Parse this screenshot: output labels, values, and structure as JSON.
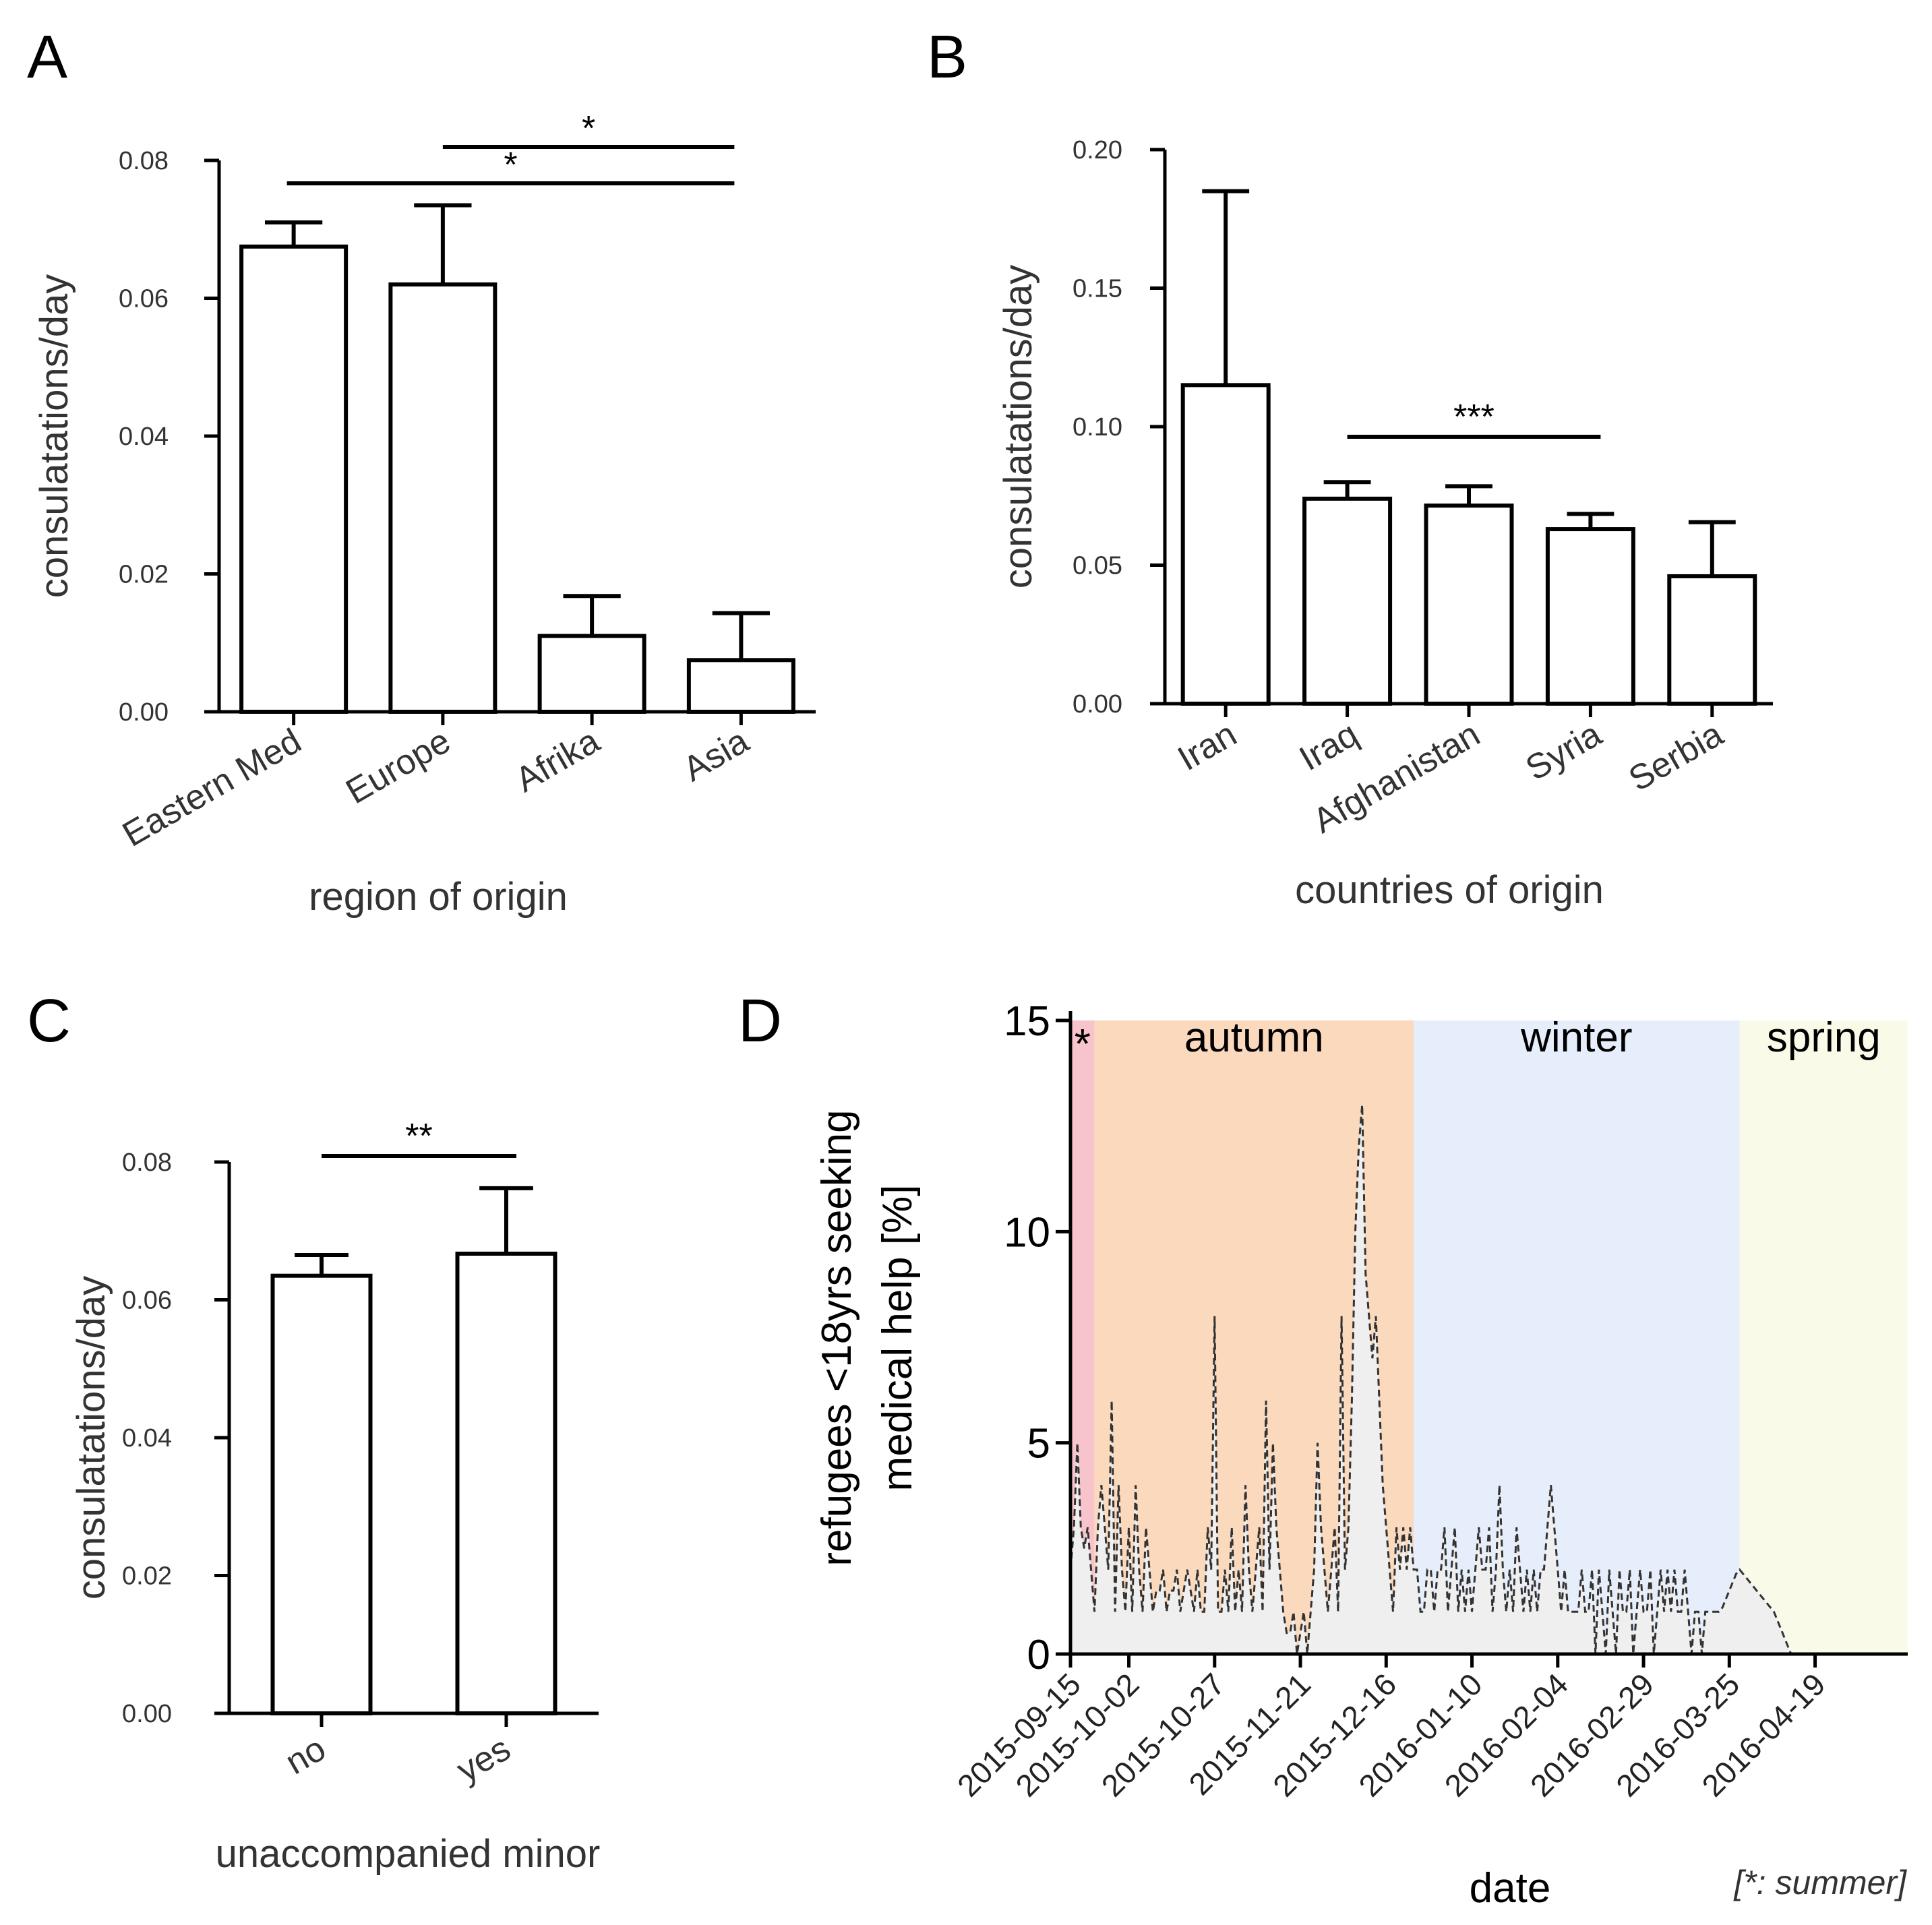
{
  "panels": {
    "A": {
      "label": "A"
    },
    "B": {
      "label": "B"
    },
    "C": {
      "label": "C"
    },
    "D": {
      "label": "D"
    }
  },
  "chart_data": [
    {
      "id": "A",
      "type": "bar",
      "categories": [
        "Eastern Med",
        "Europe",
        "Afrika",
        "Asia"
      ],
      "values": [
        0.0675,
        0.062,
        0.011,
        0.0075
      ],
      "errors": [
        0.0035,
        0.0115,
        0.0058,
        0.0068
      ],
      "ylabel": "consulatations/day",
      "xlabel": "region of origin",
      "ylim": [
        0,
        0.08
      ],
      "yticks": [
        "0.00",
        "0.02",
        "0.04",
        "0.06",
        "0.08"
      ],
      "significance": [
        {
          "from": 1,
          "to": 3,
          "label": "*"
        },
        {
          "from": 0,
          "to": 3,
          "label": "*"
        }
      ]
    },
    {
      "id": "B",
      "type": "bar",
      "categories": [
        "Iran",
        "Iraq",
        "Afghanistan",
        "Syria",
        "Serbia"
      ],
      "values": [
        0.115,
        0.074,
        0.0715,
        0.063,
        0.046
      ],
      "errors": [
        0.07,
        0.006,
        0.007,
        0.0055,
        0.0195
      ],
      "ylabel": "consulatations/day",
      "xlabel": "countries of origin",
      "ylim": [
        0,
        0.2
      ],
      "yticks": [
        "0.00",
        "0.05",
        "0.10",
        "0.15",
        "0.20"
      ],
      "significance": [
        {
          "from": 1,
          "to": 3,
          "label": "***"
        }
      ]
    },
    {
      "id": "C",
      "type": "bar",
      "categories": [
        "no",
        "yes"
      ],
      "values": [
        0.0635,
        0.0667
      ],
      "errors": [
        0.003,
        0.0095
      ],
      "ylabel": "consulatations/day",
      "xlabel": "unaccompanied minor",
      "ylim": [
        0,
        0.08
      ],
      "yticks": [
        "0.00",
        "0.02",
        "0.04",
        "0.06",
        "0.08"
      ],
      "significance": [
        {
          "from": 0,
          "to": 1,
          "label": "**"
        }
      ]
    },
    {
      "id": "D",
      "type": "area",
      "ylabel_line1": "refugees <18yrs seeking",
      "ylabel_line2": "medical help [%]",
      "xlabel": "date",
      "ylim": [
        0,
        15
      ],
      "yticks": [
        "0",
        "5",
        "10",
        "15"
      ],
      "x_tick_labels": [
        "2015-09-15",
        "2015-10-02",
        "2015-10-27",
        "2015-11-21",
        "2015-12-16",
        "2016-01-10",
        "2016-02-04",
        "2016-02-29",
        "2016-03-25",
        "2016-04-19"
      ],
      "x_tick_days": [
        0,
        17,
        42,
        67,
        92,
        117,
        142,
        167,
        192,
        217
      ],
      "x_max_day": 244,
      "seasons": [
        {
          "name": "*",
          "start_day": 0,
          "end_day": 7,
          "color": "#f7c4cc"
        },
        {
          "name": "autumn",
          "start_day": 7,
          "end_day": 100,
          "color": "#fbd9bd"
        },
        {
          "name": "winter",
          "start_day": 100,
          "end_day": 195,
          "color": "#e6eefb"
        },
        {
          "name": "spring",
          "start_day": 195,
          "end_day": 244,
          "color": "#f9fbe8"
        }
      ],
      "note": "[*: summer]",
      "series_days": [
        0,
        1,
        2,
        3,
        4,
        5,
        6,
        7,
        8,
        9,
        10,
        11,
        12,
        13,
        14,
        15,
        16,
        17,
        18,
        19,
        20,
        21,
        22,
        23,
        24,
        25,
        26,
        27,
        28,
        29,
        30,
        31,
        32,
        33,
        34,
        35,
        36,
        37,
        38,
        39,
        40,
        41,
        42,
        43,
        44,
        45,
        46,
        47,
        48,
        49,
        50,
        51,
        52,
        53,
        54,
        55,
        56,
        57,
        58,
        59,
        60,
        61,
        62,
        63,
        64,
        65,
        66,
        67,
        68,
        69,
        70,
        71,
        72,
        73,
        74,
        75,
        76,
        77,
        78,
        79,
        80,
        81,
        82,
        83,
        84,
        85,
        86,
        87,
        88,
        89,
        90,
        91,
        92,
        93,
        94,
        95,
        96,
        97,
        98,
        99,
        100,
        101,
        102,
        103,
        104,
        105,
        106,
        107,
        108,
        109,
        110,
        111,
        112,
        113,
        114,
        115,
        116,
        117,
        118,
        119,
        120,
        121,
        122,
        123,
        124,
        125,
        126,
        127,
        128,
        129,
        130,
        131,
        132,
        133,
        134,
        135,
        136,
        137,
        138,
        139,
        140,
        141,
        142,
        143,
        144,
        145,
        146,
        147,
        148,
        149,
        150,
        151,
        152,
        153,
        154,
        155,
        156,
        157,
        158,
        159,
        160,
        161,
        162,
        163,
        164,
        165,
        166,
        167,
        168,
        169,
        170,
        171,
        172,
        173,
        174,
        175,
        176,
        177,
        178,
        179,
        180,
        181,
        182,
        183,
        184,
        185,
        186,
        187,
        188,
        189,
        190,
        191,
        192,
        193,
        194,
        195,
        196,
        197,
        198,
        199,
        200,
        201,
        202,
        203,
        204,
        205,
        206,
        207,
        208,
        209,
        210,
        211,
        212,
        213,
        214,
        215,
        216,
        217,
        218,
        219,
        220,
        221,
        222,
        223,
        224,
        225,
        226,
        227,
        228,
        229,
        230,
        231,
        232,
        233,
        234,
        235,
        236,
        237,
        238,
        239,
        240,
        241,
        242,
        243,
        244
      ],
      "series_values": [
        2,
        3,
        5,
        3,
        2.5,
        3,
        2,
        1,
        3,
        4,
        3,
        2,
        6,
        1,
        4,
        2,
        1,
        3,
        1,
        4,
        2,
        1,
        3,
        2,
        1,
        1.5,
        1.5,
        2,
        1,
        1.5,
        1.5,
        2,
        1,
        1.5,
        2,
        1.5,
        1,
        2,
        1,
        1,
        3,
        2,
        8,
        1,
        1,
        2,
        1,
        3,
        1,
        2,
        1,
        4,
        2,
        1,
        2,
        3,
        1,
        6,
        2,
        5,
        3,
        2,
        1,
        0.5,
        0.5,
        1,
        0,
        0.5,
        1,
        0,
        1,
        2,
        5,
        3,
        2,
        1,
        2,
        3,
        1,
        8,
        2,
        3,
        6,
        10,
        12,
        13,
        9,
        8,
        7,
        8,
        6,
        4,
        3,
        2,
        1,
        3,
        2,
        3,
        2,
        3,
        2,
        2,
        1,
        1,
        2,
        2,
        1,
        2,
        2,
        3,
        1,
        2,
        3,
        1,
        2,
        1,
        2,
        1,
        2,
        3,
        2,
        2,
        3,
        1,
        2,
        4,
        2,
        1,
        2,
        1,
        3,
        2,
        1,
        2,
        1,
        2,
        1,
        2,
        2,
        3,
        4,
        3,
        2,
        1,
        2,
        1,
        1,
        1,
        1,
        2,
        1,
        1,
        2,
        0,
        2,
        1,
        0,
        2,
        1,
        0,
        2,
        1,
        1,
        2,
        0,
        1,
        2,
        1,
        1,
        2,
        0,
        1,
        2,
        1,
        2,
        1,
        2,
        1,
        1,
        2,
        1,
        0,
        1,
        1,
        0,
        1,
        1,
        1,
        1,
        1,
        1.1,
        1.3,
        1.5,
        1.7,
        1.9,
        2,
        1.9,
        1.8,
        1.7,
        1.6,
        1.5,
        1.4,
        1.3,
        1.2,
        1.1,
        1,
        0.8,
        0.6,
        0.4,
        0.2,
        0,
        0,
        0,
        0,
        0,
        0,
        0,
        0,
        0,
        0,
        0,
        0,
        0,
        0,
        0,
        0,
        0,
        0,
        0,
        0,
        0,
        0,
        0,
        0,
        0,
        0,
        0,
        0,
        0,
        0
      ]
    }
  ]
}
